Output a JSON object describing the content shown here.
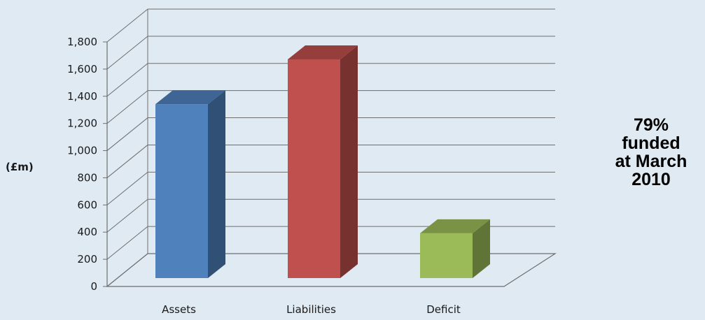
{
  "chart_data": {
    "type": "bar",
    "categories": [
      "Assets",
      "Liabilities",
      "Deficit"
    ],
    "values": [
      1280,
      1610,
      330
    ],
    "ylabel": "(£m)",
    "ylim": [
      0,
      1800
    ],
    "yticks": [
      "0",
      "200",
      "400",
      "600",
      "800",
      "1,000",
      "1,200",
      "1,400",
      "1,600",
      "1,800"
    ],
    "grid": true,
    "three_d": true,
    "colors": [
      "#4f81bd",
      "#c0504d",
      "#9bbb59"
    ]
  },
  "annotation": {
    "lines": [
      "79%",
      "funded",
      "at March",
      "2010"
    ]
  }
}
